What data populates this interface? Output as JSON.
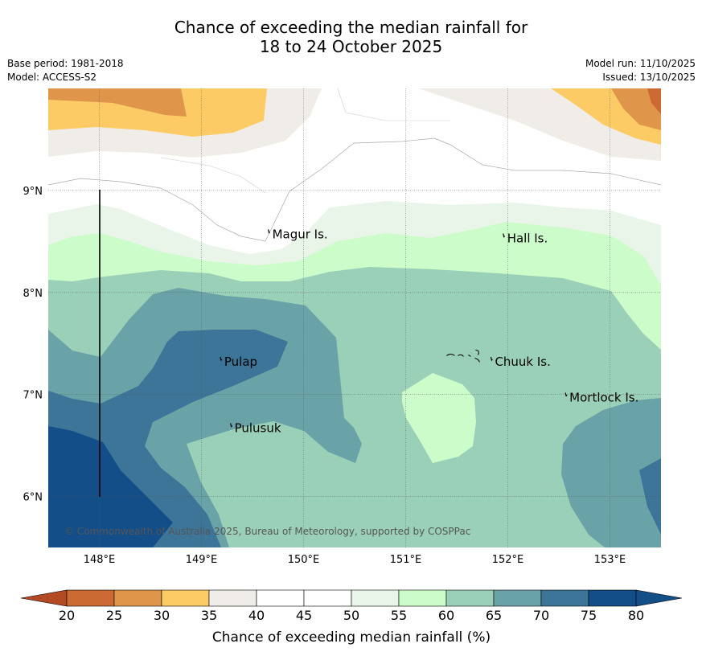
{
  "chart_data": {
    "type": "contour_map",
    "title_line1": "Chance of exceeding the median rainfall for",
    "title_line2": "18 to 24 October 2025",
    "base_period": "Base period: 1981-2018",
    "model": "Model: ACCESS-S2",
    "model_run": "Model run: 11/10/2025",
    "issued": "Issued: 13/10/2025",
    "copyright": "© Commonwealth of Australia 2025, Bureau of Meteorology, supported by COSPPac",
    "lon_range": [
      147.5,
      153.5
    ],
    "lat_range": [
      5.5,
      10.0
    ],
    "x_ticks": [
      {
        "lon": 148,
        "label": "148°E"
      },
      {
        "lon": 149,
        "label": "149°E"
      },
      {
        "lon": 150,
        "label": "150°E"
      },
      {
        "lon": 151,
        "label": "151°E"
      },
      {
        "lon": 152,
        "label": "152°E"
      },
      {
        "lon": 153,
        "label": "153°E"
      }
    ],
    "y_ticks": [
      {
        "lat": 9,
        "label": "9°N"
      },
      {
        "lat": 8,
        "label": "8°N"
      },
      {
        "lat": 7,
        "label": "7°N"
      },
      {
        "lat": 6,
        "label": "6°N"
      }
    ],
    "places": [
      {
        "name": "Magur Is.",
        "lon": 149.67,
        "lat": 8.57
      },
      {
        "name": "Hall Is.",
        "lon": 151.97,
        "lat": 8.53
      },
      {
        "name": "Pulap",
        "lon": 149.2,
        "lat": 7.32
      },
      {
        "name": "Chuuk Is.",
        "lon": 151.85,
        "lat": 7.32
      },
      {
        "name": "Mortlock Is.",
        "lon": 152.58,
        "lat": 6.97
      },
      {
        "name": "Pulusuk",
        "lon": 149.3,
        "lat": 6.67
      }
    ],
    "colorbar": {
      "label": "Chance of exceeding median rainfall (%)",
      "ticks": [
        "20",
        "25",
        "30",
        "35",
        "40",
        "45",
        "50",
        "55",
        "60",
        "65",
        "70",
        "75",
        "80"
      ],
      "colors": [
        "#b34a24",
        "#cc6a33",
        "#e0964a",
        "#fccb65",
        "#f0ede8",
        "#ffffff",
        "#ffffff",
        "#eaf5ea",
        "#ccfcca",
        "#9bd0b8",
        "#6aa3a7",
        "#3c7597",
        "#134e88"
      ]
    },
    "zone_colors": {
      "c25": "#cc6a33",
      "c30": "#e0964a",
      "c35": "#fccb65",
      "c40": "#f0ede8",
      "c55": "#eaf5ea",
      "c60": "#ccfcca",
      "c65": "#9bd0b8",
      "c70": "#6aa3a7",
      "c75": "#3c7597",
      "c80": "#134e88"
    }
  }
}
